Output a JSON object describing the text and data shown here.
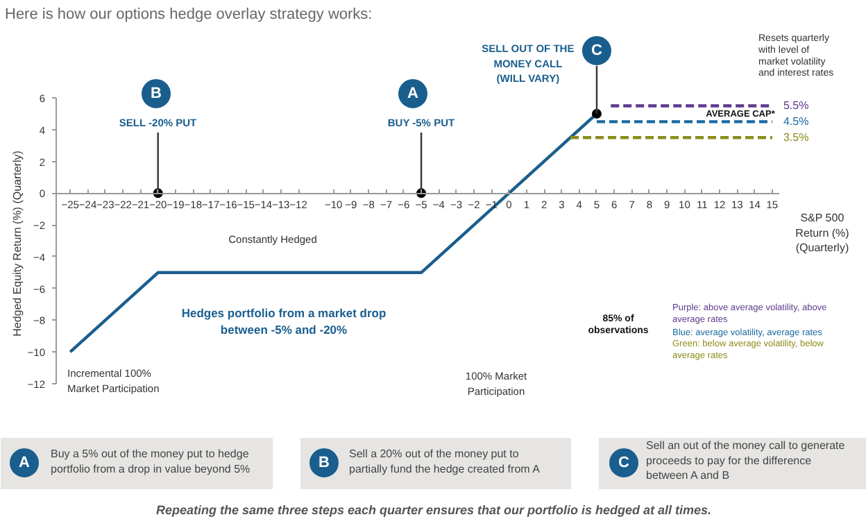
{
  "chart_data": {
    "type": "line",
    "title": "Here is how our options hedge overlay strategy works:",
    "xlabel": "S&P 500\nReturn (%)\n(Quarterly)",
    "ylabel": "Hedged Equity Return (%) (Quarterly)",
    "xlim": [
      -25.8,
      15.4
    ],
    "ylim": [
      -12,
      6
    ],
    "xticks": [
      -25,
      -24,
      -23,
      -22,
      -21,
      -20,
      -19,
      -18,
      -17,
      -16,
      -15,
      -14,
      -13,
      -12,
      -10,
      -9,
      -8,
      -7,
      -6,
      -5,
      -4,
      -3,
      -2,
      -1,
      0,
      1,
      2,
      3,
      4,
      5,
      6,
      7,
      8,
      9,
      10,
      11,
      12,
      13,
      14,
      15
    ],
    "yticks": [
      -12,
      -10,
      -8,
      -6,
      -4,
      -2,
      0,
      2,
      4,
      6
    ],
    "series": [
      {
        "x": [
          -25,
          -20,
          -5,
          5
        ],
        "values": [
          -10,
          -5,
          -5,
          5
        ],
        "color": "#1a5e8e",
        "line_style": "solid"
      },
      {
        "name": "5.5%",
        "x": [
          5.8,
          15
        ],
        "values": [
          5.5,
          5.5
        ],
        "color": "#5e3a8c",
        "line_style": "dashed"
      },
      {
        "name": "4.5%",
        "x": [
          5,
          15
        ],
        "values": [
          4.5,
          4.5
        ],
        "color": "#1a6aa0",
        "line_style": "dashed"
      },
      {
        "name": "3.5%",
        "x": [
          3.5,
          15
        ],
        "values": [
          3.5,
          3.5
        ],
        "color": "#8c8c1c",
        "line_style": "dashed"
      },
      {
        "type": "scatter",
        "x": [
          -20,
          -5,
          5
        ],
        "values": [
          0,
          0,
          5
        ],
        "color": "#000000",
        "marker": "circle"
      }
    ],
    "annotations": [
      "B",
      {
        "text": "SELL -20% PUT",
        "x": -20,
        "y": 0
      },
      "A",
      {
        "text": "BUY -5% PUT",
        "x": -5,
        "y": 0
      },
      {
        "text": "C",
        "x": 5,
        "y": 5
      },
      "SELL OUT OF THE\nMONEY CALL\n(WILL VARY)",
      "AVERAGE CAP*",
      "Resets quarterly\nwith level of\nmarket volatility\nand interest rates",
      "Constantly Hedged",
      "Hedges portfolio from a market drop\nbetween -5% and -20%",
      "Incremental 100%\nMarket Participation",
      "100% Market\nParticipation",
      "85% of\nobservations",
      "Purple: above average volatility, above\naverage rates",
      "Blue: average volatility, average rates",
      "Green: below average volatility, below\naverage rates",
      "A",
      "Buy a 5% out of the money put to hedge\nportfolio from a drop in value beyond 5%",
      "B",
      "Sell a 20% out of the money put to\npartially fund the hedge created from A",
      "C",
      "Sell an out of the money call to generate\nproceeds to pay for the difference\nbetween A and B",
      "Repeating the same three steps each quarter ensures that our portfolio is hedged at all times."
    ]
  }
}
